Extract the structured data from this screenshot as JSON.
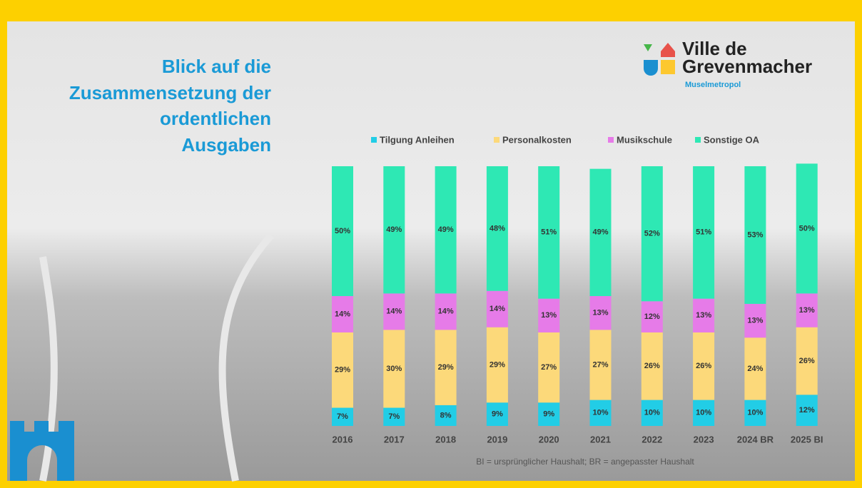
{
  "header": {
    "title_lines": [
      "Blick auf die",
      "Zusammensetzung der",
      "ordentlichen",
      "Ausgaben"
    ]
  },
  "logo": {
    "name_lines": [
      "Ville de",
      "Grevenmacher"
    ],
    "tagline": "Muselmetropol"
  },
  "chart_data": {
    "type": "stacked_bar",
    "categories": [
      "2016",
      "2017",
      "2018",
      "2019",
      "2020",
      "2021",
      "2022",
      "2023",
      "2024 BR",
      "2025 BI"
    ],
    "ylim": [
      0,
      100
    ],
    "series": [
      {
        "name": "Tilgung Anleihen",
        "color": "#22cde6",
        "values": [
          7,
          7,
          8,
          9,
          9,
          10,
          10,
          10,
          10,
          12
        ],
        "value_labels": [
          "7%",
          "7%",
          "8%",
          "9%",
          "9%",
          "10%",
          "10%",
          "10%",
          "10%",
          "12%"
        ]
      },
      {
        "name": "Personalkosten",
        "color": "#fcd97a",
        "values": [
          29,
          30,
          29,
          29,
          27,
          27,
          26,
          26,
          24,
          26
        ],
        "value_labels": [
          "29%",
          "30%",
          "29%",
          "29%",
          "27%",
          "27%",
          "26%",
          "26%",
          "24%",
          "26%"
        ]
      },
      {
        "name": "Musikschule",
        "color": "#e67be8",
        "values": [
          14,
          14,
          14,
          14,
          13,
          13,
          12,
          13,
          13,
          13
        ],
        "value_labels": [
          "14%",
          "14%",
          "14%",
          "14%",
          "13%",
          "13%",
          "12%",
          "13%",
          "13%",
          "13%"
        ]
      },
      {
        "name": "Sonstige OA",
        "color": "#2ee8b4",
        "values": [
          50,
          49,
          49,
          48,
          51,
          49,
          52,
          51,
          53,
          50
        ],
        "value_labels": [
          "50%",
          "49%",
          "49%",
          "48%",
          "51%",
          "49%",
          "52%",
          "51%",
          "53%",
          "50%"
        ]
      }
    ],
    "footnote": "BI = ursprünglicher Haushalt;   BR = angepasster Haushalt"
  }
}
